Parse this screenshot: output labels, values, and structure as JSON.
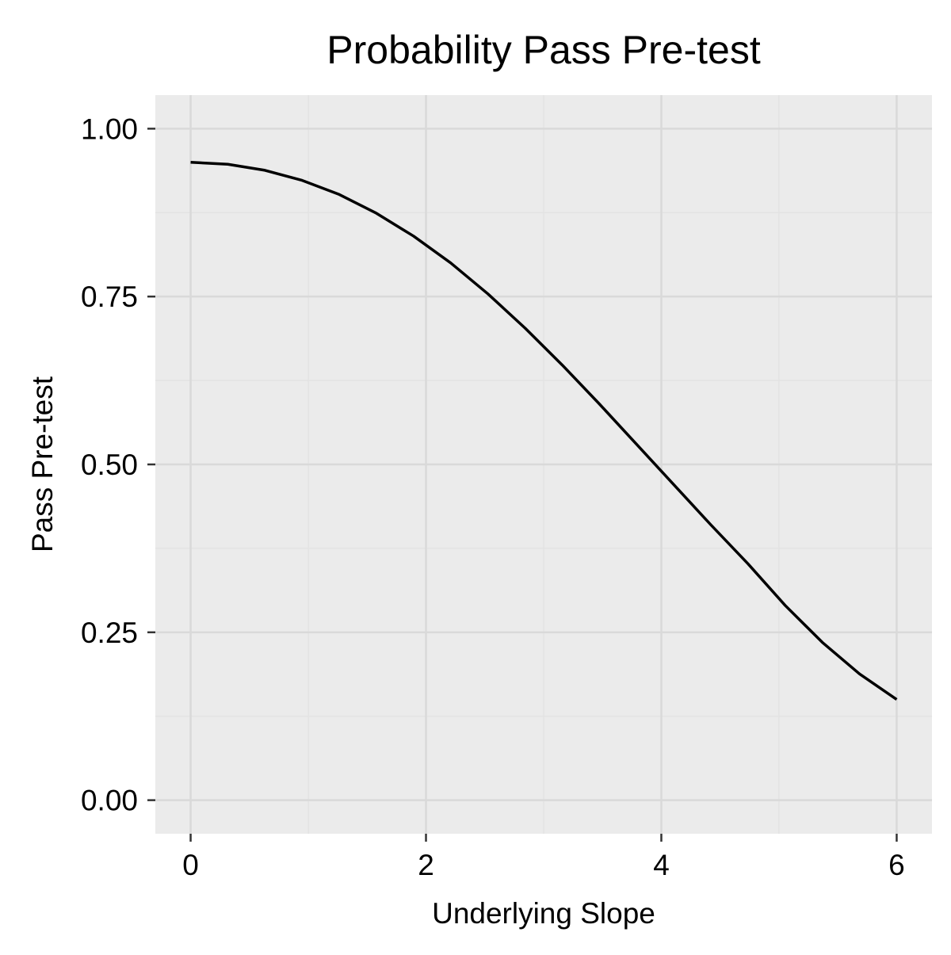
{
  "chart_data": {
    "type": "line",
    "title": "Probability Pass Pre-test",
    "xlabel": "Underlying Slope",
    "ylabel": "Pass Pre-test",
    "xlim": [
      -0.3,
      6.3
    ],
    "ylim": [
      -0.05,
      1.05
    ],
    "x_ticks": [
      0,
      2,
      4,
      6
    ],
    "x_tick_labels": [
      "0",
      "2",
      "4",
      "6"
    ],
    "x_minor_grid": [
      1,
      3,
      5
    ],
    "y_ticks": [
      0,
      0.25,
      0.5,
      0.75,
      1
    ],
    "y_tick_labels": [
      "0.00",
      "0.25",
      "0.50",
      "0.75",
      "1.00"
    ],
    "y_minor_grid": [
      0.125,
      0.375,
      0.625,
      0.875
    ],
    "grid": true,
    "legend": "none",
    "colors": {
      "panel_background": "#ebebeb",
      "major_grid": "#d9d9d9",
      "minor_grid": "#e3e3e3",
      "line": "#000000",
      "tick": "#333333"
    },
    "series": [
      {
        "x": [
          0,
          0.3158,
          0.6316,
          0.9474,
          1.2632,
          1.5789,
          1.8947,
          2.2105,
          2.5263,
          2.8421,
          3.1579,
          3.4737,
          3.7895,
          4.1053,
          4.4211,
          4.7368,
          5.0526,
          5.3684,
          5.6842,
          6.0
        ],
        "y": [
          0.95,
          0.947,
          0.938,
          0.923,
          0.902,
          0.874,
          0.84,
          0.8,
          0.754,
          0.703,
          0.648,
          0.59,
          0.53,
          0.47,
          0.41,
          0.352,
          0.29,
          0.235,
          0.188,
          0.15
        ]
      }
    ]
  }
}
